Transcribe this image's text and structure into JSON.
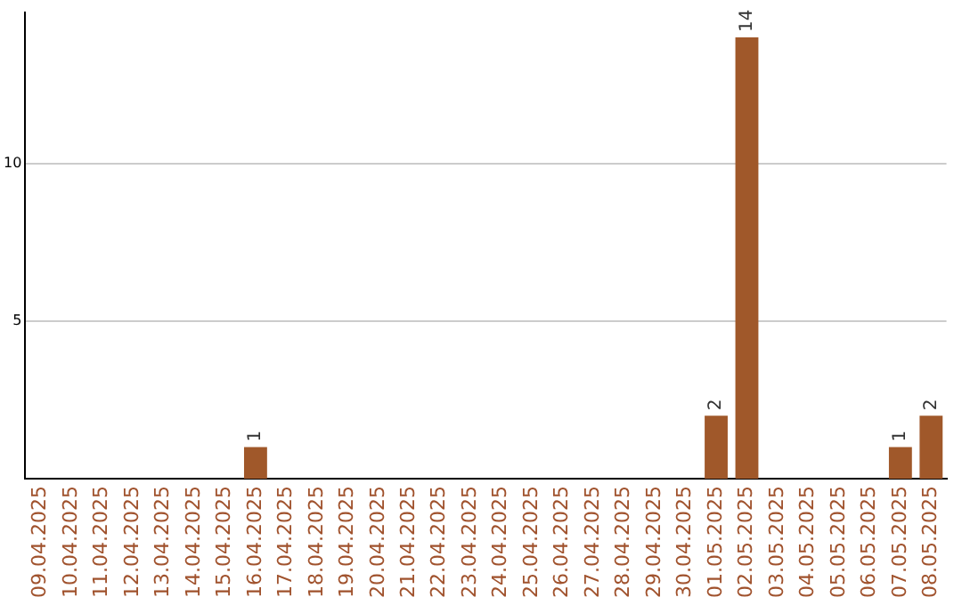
{
  "chart_data": {
    "type": "bar",
    "categories": [
      "09.04.2025",
      "10.04.2025",
      "11.04.2025",
      "12.04.2025",
      "13.04.2025",
      "14.04.2025",
      "15.04.2025",
      "16.04.2025",
      "17.04.2025",
      "18.04.2025",
      "19.04.2025",
      "20.04.2025",
      "21.04.2025",
      "22.04.2025",
      "23.04.2025",
      "24.04.2025",
      "25.04.2025",
      "26.04.2025",
      "27.04.2025",
      "28.04.2025",
      "29.04.2025",
      "30.04.2025",
      "01.05.2025",
      "02.05.2025",
      "03.05.2025",
      "04.05.2025",
      "05.05.2025",
      "06.05.2025",
      "07.05.2025",
      "08.05.2025"
    ],
    "values": [
      0,
      0,
      0,
      0,
      0,
      0,
      0,
      1,
      0,
      0,
      0,
      0,
      0,
      0,
      0,
      0,
      0,
      0,
      0,
      0,
      0,
      0,
      2,
      14,
      0,
      0,
      0,
      0,
      1,
      2
    ],
    "value_labels": [
      null,
      null,
      null,
      null,
      null,
      null,
      null,
      "1",
      null,
      null,
      null,
      null,
      null,
      null,
      null,
      null,
      null,
      null,
      null,
      null,
      null,
      null,
      "2",
      "14",
      null,
      null,
      null,
      null,
      "1",
      "2"
    ],
    "color": "#a0582a",
    "ylim": [
      0,
      14.8
    ],
    "yticks": [
      5,
      10
    ],
    "grid": "y",
    "legend": false
  }
}
